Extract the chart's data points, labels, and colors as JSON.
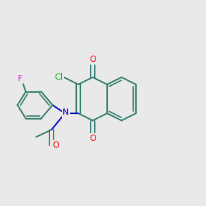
{
  "background_color": "#e9e9e9",
  "bond_color": "#2d7a6a",
  "bond_lw": 1.5,
  "colors": {
    "O": "#ff0000",
    "N": "#0000cc",
    "Cl": "#00bb00",
    "F": "#ee00ee",
    "C": "#2d7a6a"
  },
  "font_size": 9,
  "font_size_small": 8
}
